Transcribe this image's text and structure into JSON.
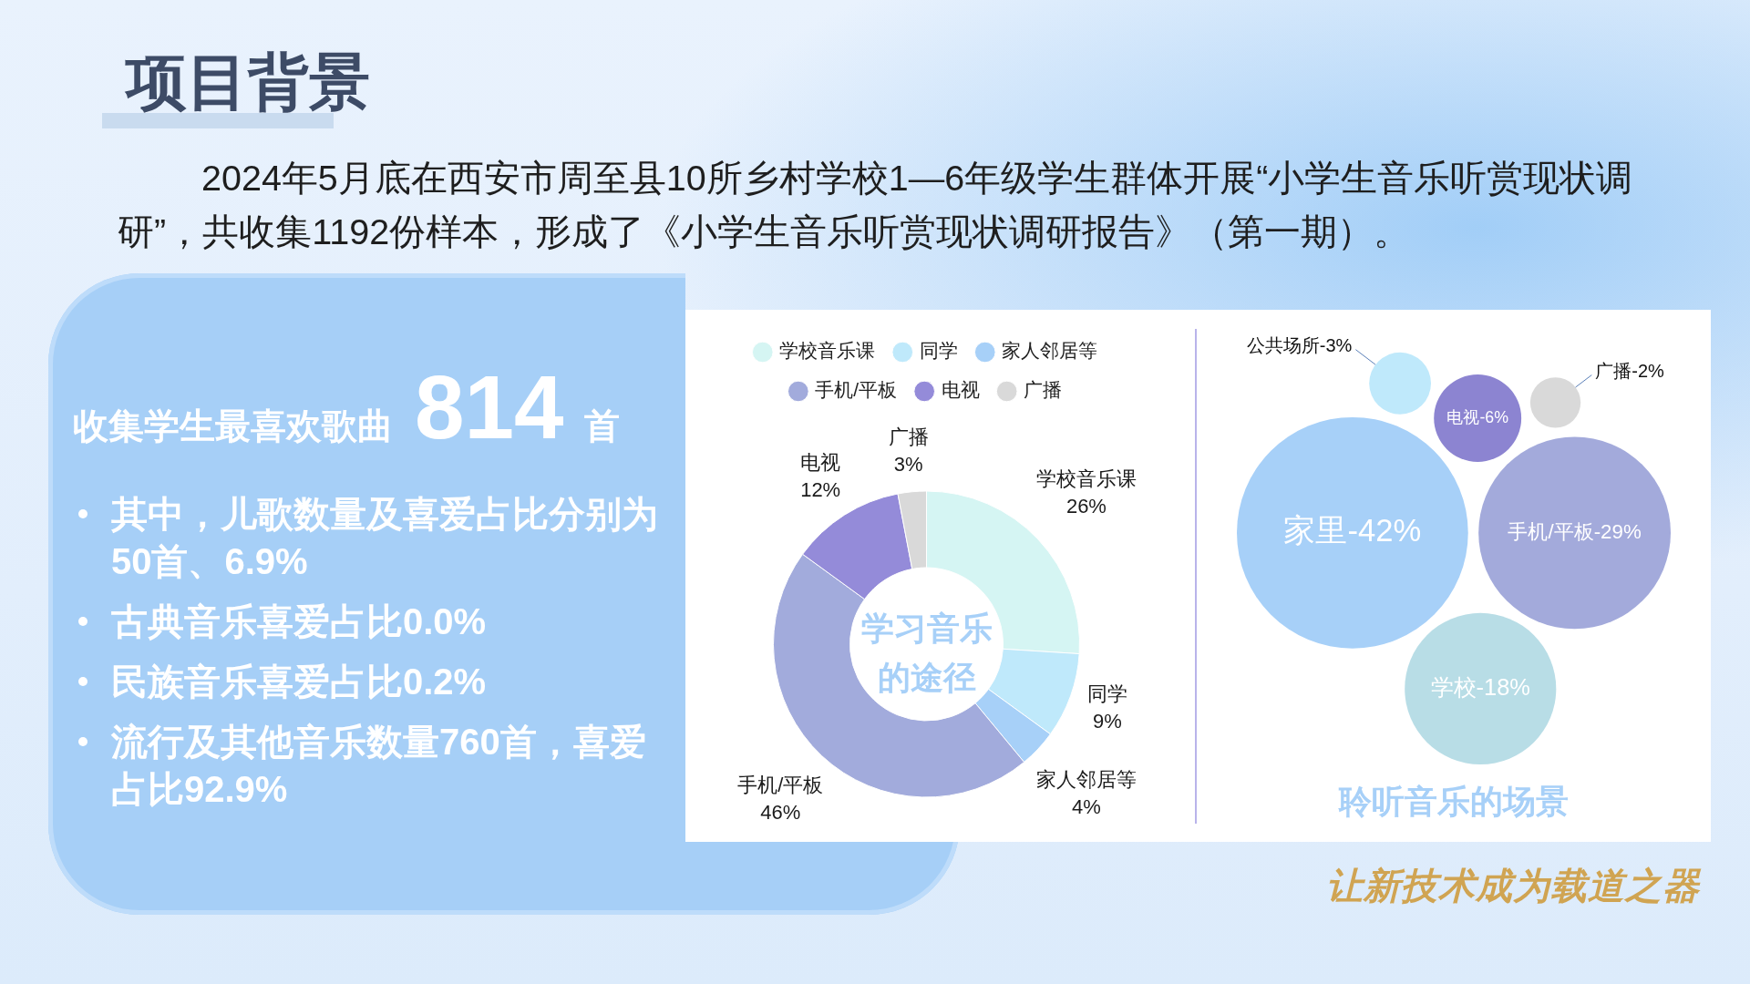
{
  "chart_data": [
    {
      "type": "other",
      "title": "项目背景",
      "subtitle": "2024年5月底在西安市周至县10所乡村学校1—6年级学生群体开展“小学生音乐听赏现状调研”，共收集1192份样本，形成了《小学生音乐听赏现状调研报告》（第一期）。"
    },
    {
      "type": "other",
      "annotations": [
        "收集学生最喜欢歌曲",
        "814",
        "首",
        "其中，儿歌数量及喜爱占比分别为50首、6.9%",
        "古典音乐喜爱占比0.0%",
        "民族音乐喜爱占比0.2%",
        "流行及其他音乐数量760首，喜爱占比92.9%"
      ]
    },
    {
      "type": "donut",
      "title": "学习音乐的途径",
      "categories": [
        "学校音乐课",
        "同学",
        "家人邻居等",
        "手机/平板",
        "电视",
        "广播"
      ],
      "values": [
        26,
        9,
        4,
        46,
        12,
        3
      ],
      "value_labels": [
        "26%",
        "9%",
        "4%",
        "46%",
        "12%",
        "3%"
      ],
      "colors": [
        "#d5f5f3",
        "#bfe9fb",
        "#a7d0f8",
        "#a2abdc",
        "#948bd9",
        "#d9d9d9"
      ],
      "legend": "top"
    },
    {
      "type": "other",
      "title": "聆听音乐的场景",
      "categories": [
        "家里-",
        "手机/平板-",
        "学校-",
        "电视-",
        "公共场所-",
        "广播-"
      ],
      "values": [
        42,
        29,
        18,
        6,
        3,
        2
      ],
      "value_labels": [
        "42%",
        "29%",
        "18%",
        "6%",
        "3%",
        "2%"
      ],
      "colors": [
        "#a7d0f8",
        "#a3aadb",
        "#b8dde6",
        "#8c84d1",
        "#bfe9fb",
        "#d9d9d9"
      ]
    },
    {
      "type": "other",
      "annotations": [
        "让新技术成为载道之器"
      ]
    }
  ]
}
